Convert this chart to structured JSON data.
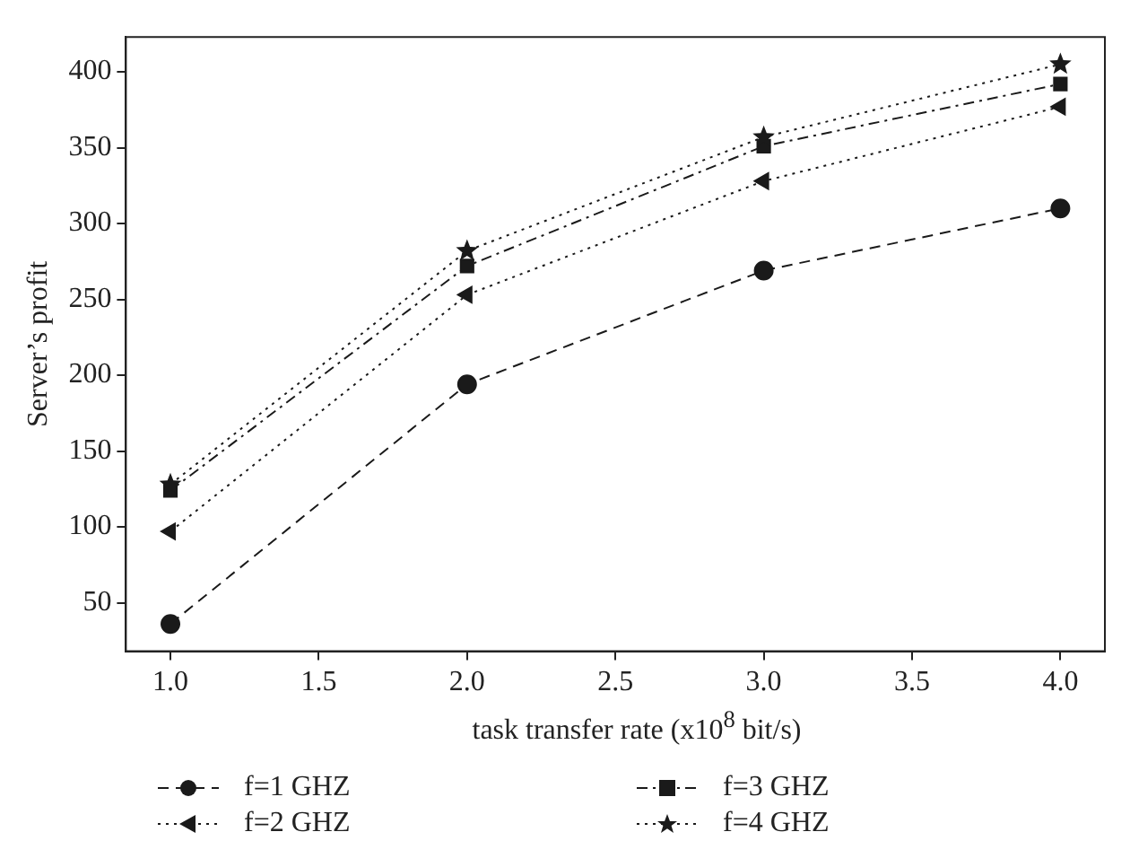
{
  "chart_data": {
    "type": "line",
    "xlabel": "task transfer rate (x10$^{8}$ bit/s)",
    "ylabel": "Server’s profit",
    "x": [
      1.0,
      2.0,
      3.0,
      4.0
    ],
    "series": [
      {
        "name": "f=1 GHZ",
        "color": "#1a1a1a",
        "values": [
          36,
          194,
          269,
          310
        ],
        "marker": "circle",
        "line_style": "dashed"
      },
      {
        "name": "f=2 GHZ",
        "color": "#1a1a1a",
        "values": [
          97,
          253,
          328,
          377
        ],
        "marker": "triangle",
        "line_style": "dotted"
      },
      {
        "name": "f=3 GHZ",
        "color": "#1a1a1a",
        "values": [
          124,
          272,
          351,
          392
        ],
        "marker": "square",
        "line_style": "dashdot"
      },
      {
        "name": "f=4 GHZ",
        "color": "#1a1a1a",
        "values": [
          128,
          282,
          357,
          405
        ],
        "marker": "star",
        "line_style": "dotted"
      }
    ],
    "xlim": [
      0.85,
      4.15
    ],
    "xticks": [
      {
        "value": 1,
        "label": "1.0"
      },
      1.5,
      {
        "value": 2,
        "label": "2.0"
      },
      2.5,
      {
        "value": 3,
        "label": "3.0"
      },
      3.5,
      {
        "value": 4,
        "label": "4.0"
      }
    ],
    "ylim": [
      18,
      423
    ],
    "yticks": [
      50,
      100,
      150,
      200,
      250,
      300,
      350,
      400
    ],
    "grid": false,
    "legend": "bottom"
  }
}
